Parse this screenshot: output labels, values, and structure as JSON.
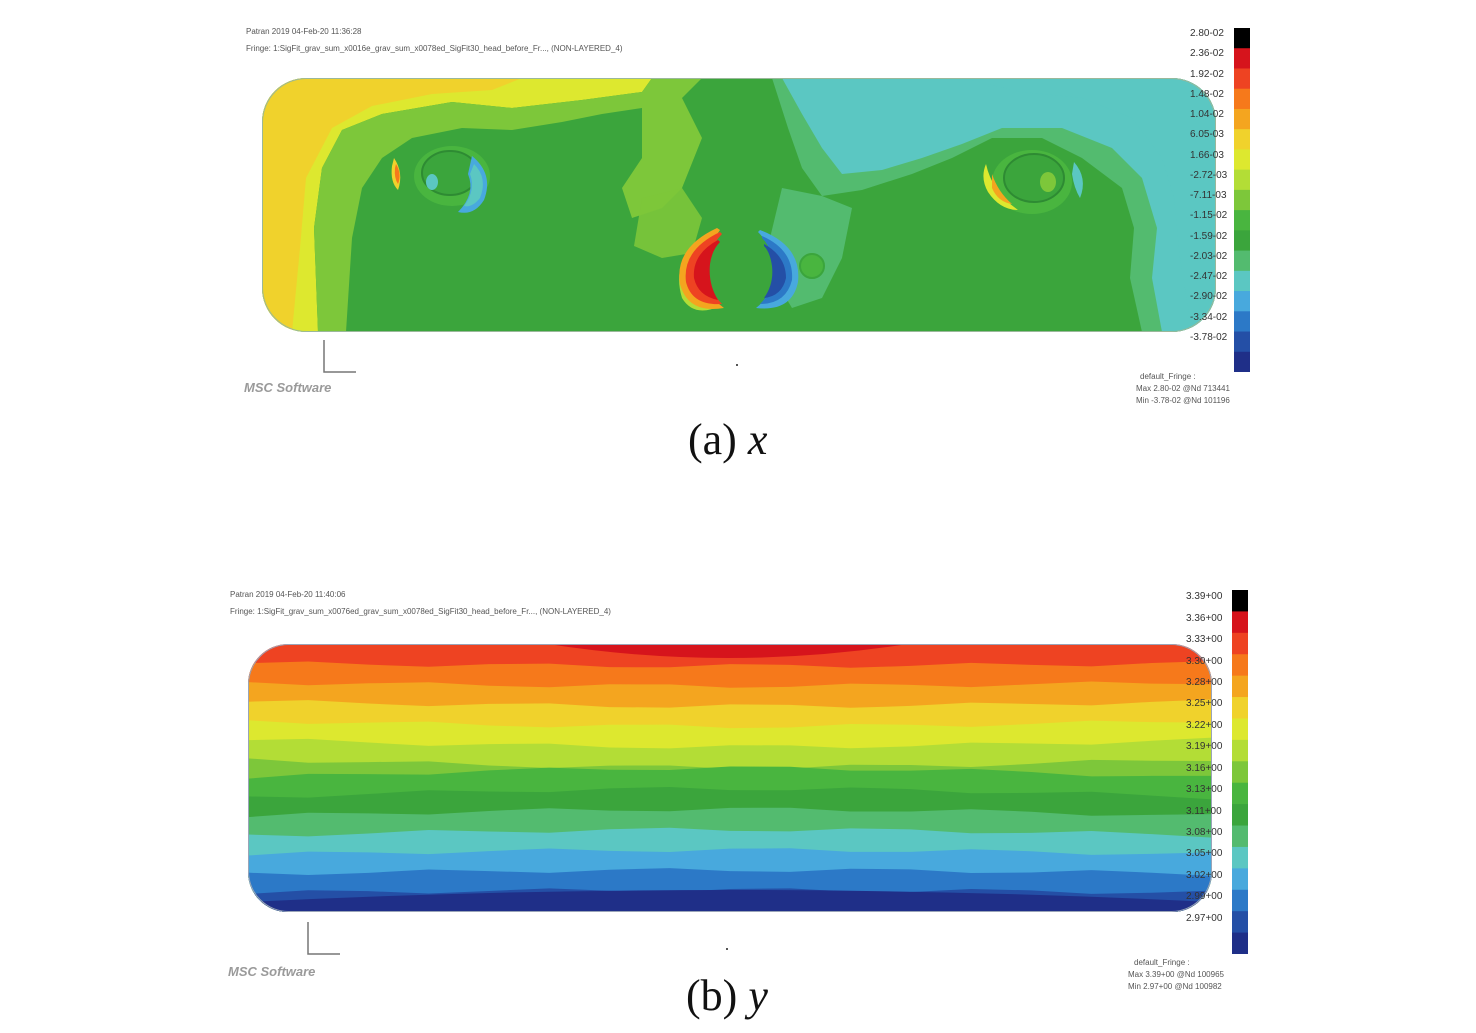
{
  "panel_a": {
    "header_line1": "Patran 2019 04-Feb-20 11:36:28",
    "header_line2": "Fringe: 1:SigFit_grav_sum_x0016e_grav_sum_x0078ed_SigFit30_head_before_Fr..., (NON-LAYERED_4)",
    "scale_ticks": [
      "2.80-02",
      "2.36-02",
      "1.92-02",
      "1.48-02",
      "1.04-02",
      "6.05-03",
      "1.66-03",
      "-2.72-03",
      "-7.11-03",
      "-1.15-02",
      "-1.59-02",
      "-2.03-02",
      "-2.47-02",
      "-2.90-02",
      "-3.34-02",
      "-3.78-02"
    ],
    "scale_colors": [
      "#000000",
      "#d6141c",
      "#ee4322",
      "#f6791b",
      "#f4a51f",
      "#f0d22c",
      "#dde82f",
      "#b3dd36",
      "#7dc73a",
      "#49b53f",
      "#3ba53c",
      "#53bb6f",
      "#5bc7c2",
      "#48a9dd",
      "#2c79c7",
      "#244fa6",
      "#1f2f88"
    ],
    "footer_line1": "default_Fringe :",
    "footer_line2": "Max 2.80-02 @Nd 713441",
    "footer_line3": "Min -3.78-02 @Nd 101196",
    "logo": "MSC Software",
    "caption_prefix": "(a) ",
    "caption_var": "x"
  },
  "panel_b": {
    "header_line1": "Patran 2019 04-Feb-20 11:40:06",
    "header_line2": "Fringe: 1:SigFit_grav_sum_x0076ed_grav_sum_x0078ed_SigFit30_head_before_Fr..., (NON-LAYERED_4)",
    "scale_ticks": [
      "3.39+00",
      "3.36+00",
      "3.33+00",
      "3.30+00",
      "3.28+00",
      "3.25+00",
      "3.22+00",
      "3.19+00",
      "3.16+00",
      "3.13+00",
      "3.11+00",
      "3.08+00",
      "3.05+00",
      "3.02+00",
      "2.99+00",
      "2.97+00"
    ],
    "scale_colors": [
      "#000000",
      "#d6141c",
      "#ee4322",
      "#f6791b",
      "#f4a51f",
      "#f0d22c",
      "#dde82f",
      "#b3dd36",
      "#7dc73a",
      "#49b53f",
      "#3ba53c",
      "#53bb6f",
      "#5bc7c2",
      "#48a9dd",
      "#2c79c7",
      "#244fa6",
      "#1f2f88"
    ],
    "footer_line1": "default_Fringe :",
    "footer_line2": "Max 3.39+00 @Nd 100965",
    "footer_line3": "Min 2.97+00 @Nd 100982",
    "logo": "MSC Software",
    "caption_prefix": "(b) ",
    "caption_var": "y"
  }
}
